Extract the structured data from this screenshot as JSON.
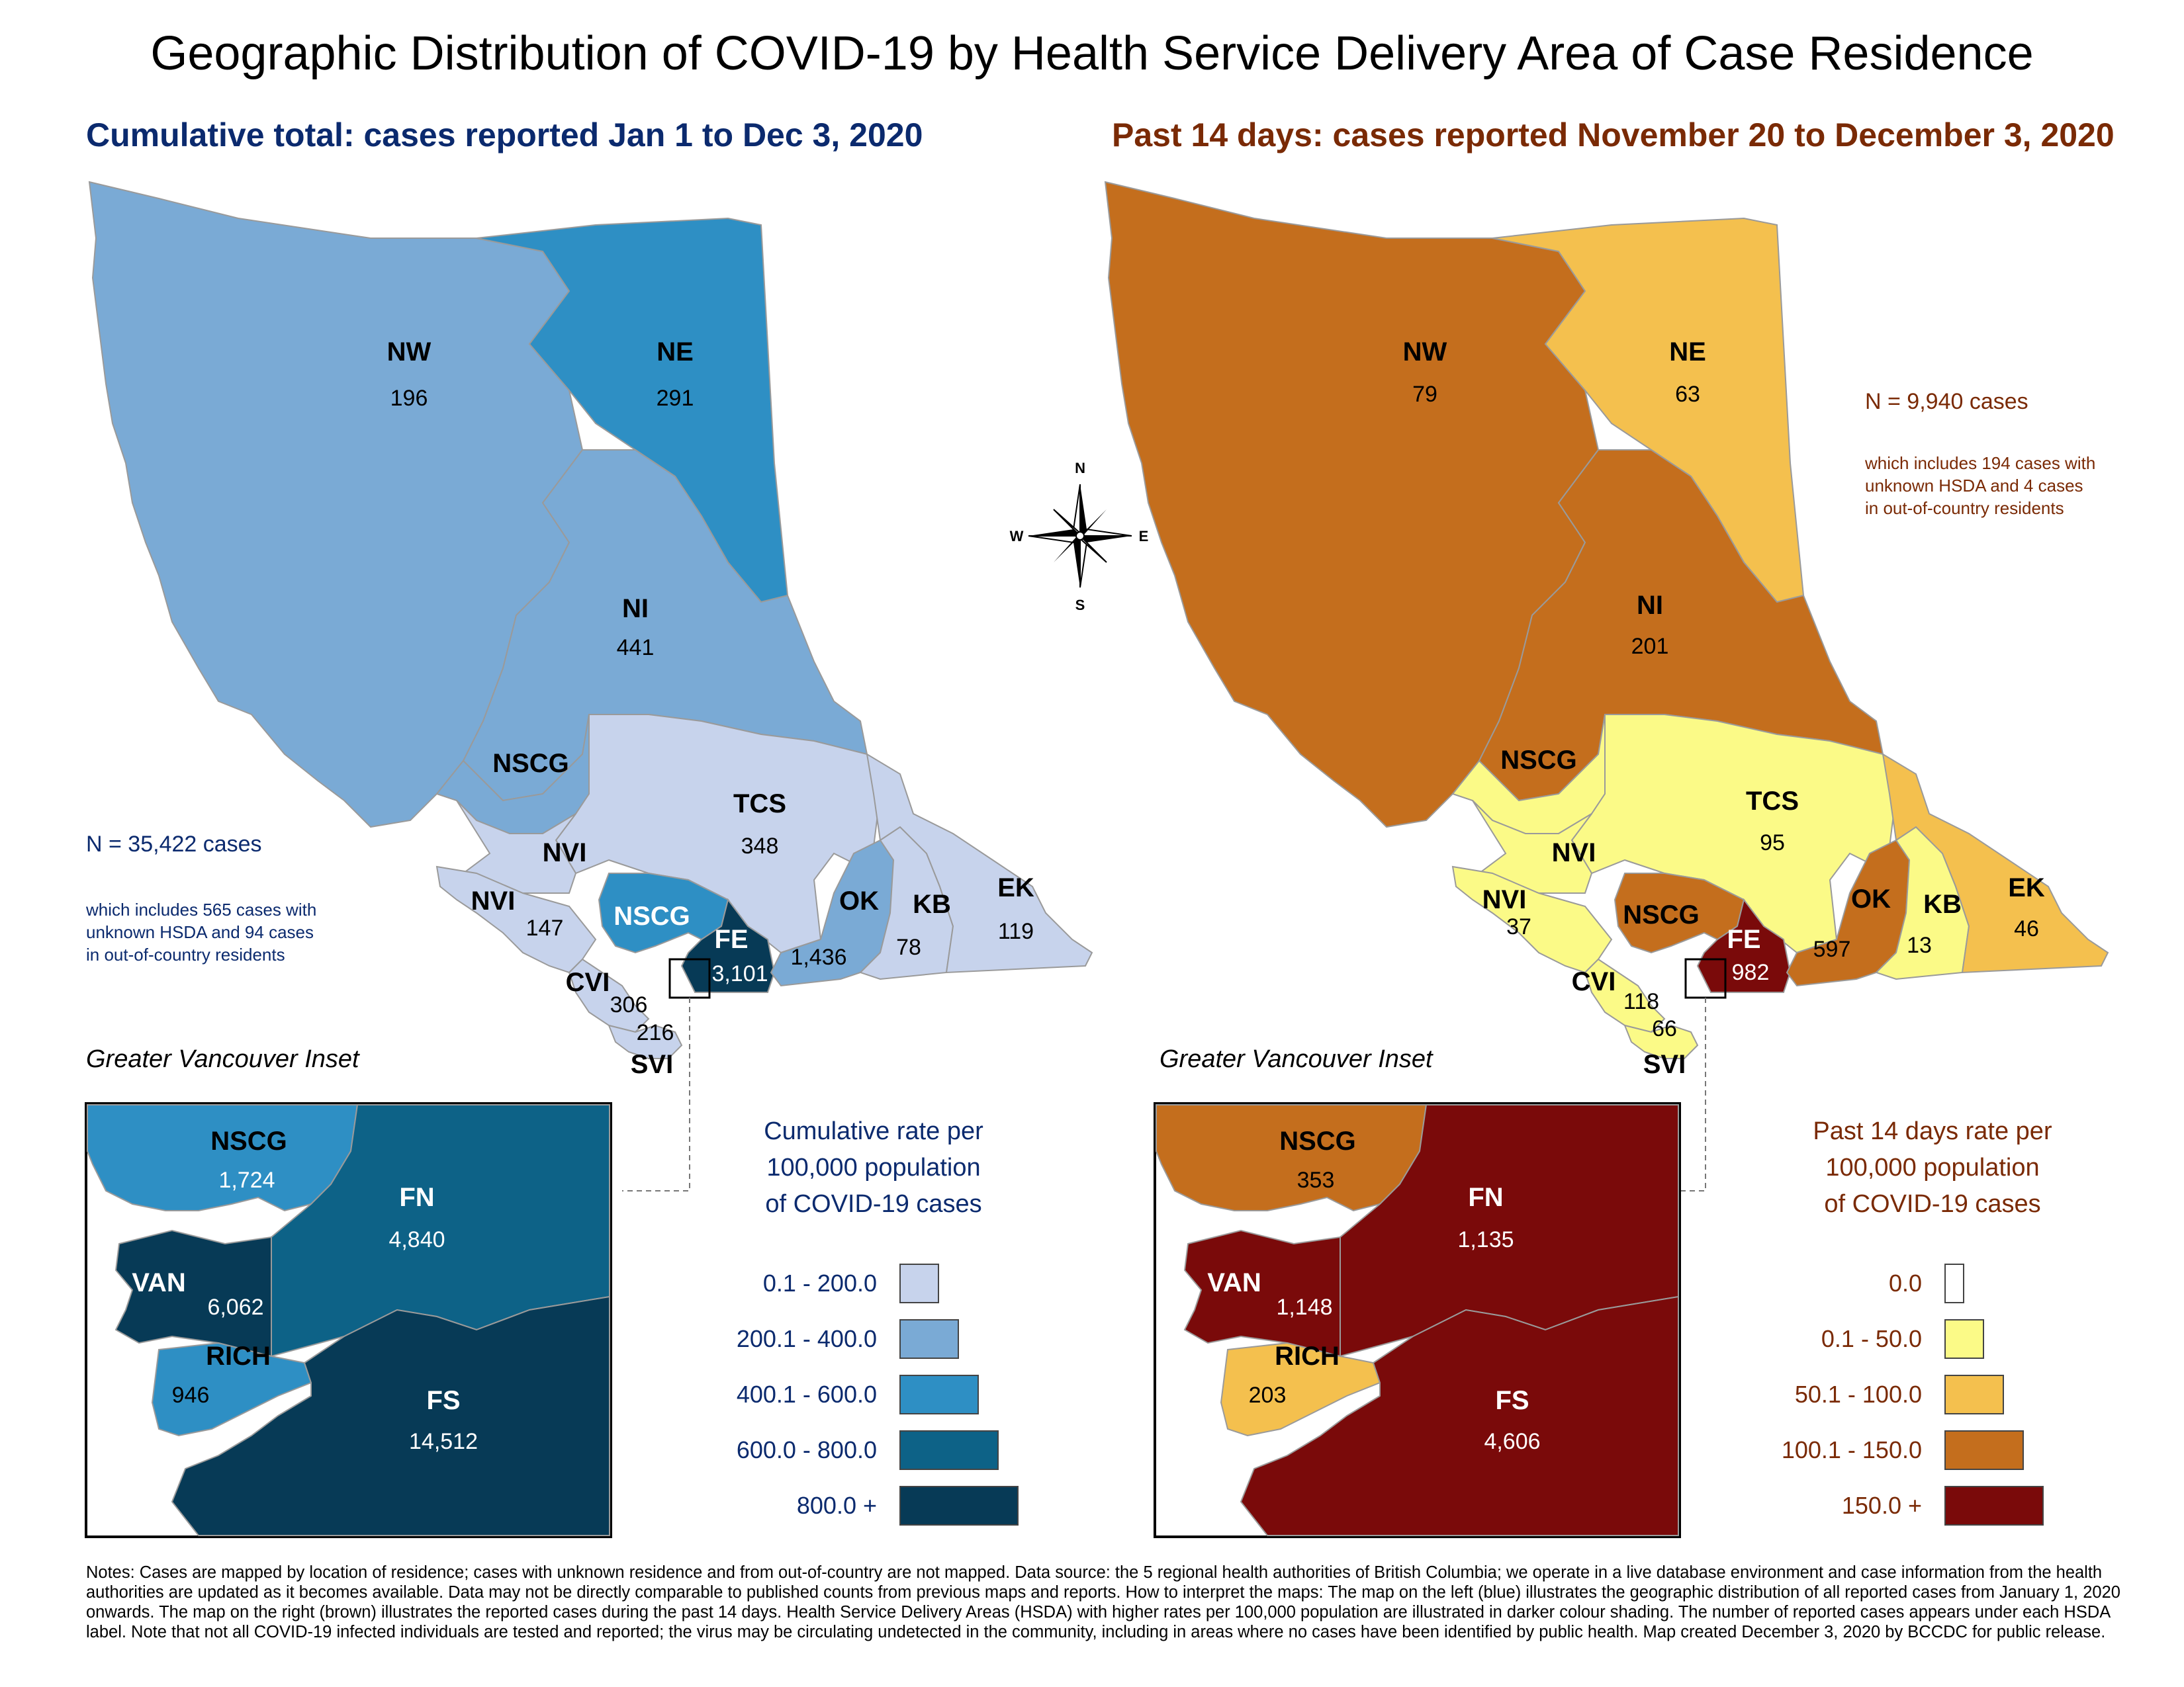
{
  "title": "Geographic Distribution of COVID-19 by Health Service Delivery Area of Case Residence",
  "cumulative": {
    "subtitle": "Cumulative total: cases reported Jan 1 to Dec 3, 2020",
    "total_note": "N = 35,422 cases",
    "detail_note_lines": [
      "which includes 565 cases with",
      "unknown HSDA and 94 cases",
      "in out-of-country residents"
    ],
    "regions": [
      {
        "code": "NW",
        "cases": "196",
        "color": "#7aaad5"
      },
      {
        "code": "NE",
        "cases": "291",
        "color": "#2e8fc4"
      },
      {
        "code": "NI",
        "cases": "441",
        "color": "#7aaad5"
      },
      {
        "code": "NSCG",
        "cases": "",
        "color": "#7aaad5"
      },
      {
        "code": "TCS",
        "cases": "348",
        "color": "#c7d3ec"
      },
      {
        "code": "NVI",
        "cases": "",
        "color": "#c7d3ec"
      },
      {
        "code": "NVI",
        "cases": "147",
        "color": "#c7d3ec"
      },
      {
        "code": "NSCG",
        "cases": "",
        "color": "#2e8fc4"
      },
      {
        "code": "FE",
        "cases": "3,101",
        "color": "#073a56"
      },
      {
        "code": "OK",
        "cases": "1,436",
        "color": "#7aaad5"
      },
      {
        "code": "KB",
        "cases": "78",
        "color": "#c7d3ec"
      },
      {
        "code": "EK",
        "cases": "119",
        "color": "#c7d3ec"
      },
      {
        "code": "CVI",
        "cases": "306",
        "color": "#c7d3ec"
      },
      {
        "code": "SVI",
        "cases": "216",
        "color": "#c7d3ec"
      }
    ],
    "inset": {
      "title": "Greater Vancouver Inset",
      "regions": [
        {
          "code": "NSCG",
          "cases": "1,724",
          "color": "#2e8fc4"
        },
        {
          "code": "FN",
          "cases": "4,840",
          "color": "#0d6287"
        },
        {
          "code": "VAN",
          "cases": "6,062",
          "color": "#073a56"
        },
        {
          "code": "RICH",
          "cases": "946",
          "color": "#2e8fc4"
        },
        {
          "code": "FS",
          "cases": "14,512",
          "color": "#073a56"
        }
      ]
    },
    "legend": {
      "title_lines": [
        "Cumulative rate per",
        "100,000 population",
        "of COVID-19 cases"
      ],
      "items": [
        {
          "label": "0.1 - 200.0",
          "color": "#c7d3ec"
        },
        {
          "label": "200.1 - 400.0",
          "color": "#7aaad5"
        },
        {
          "label": "400.1 - 600.0",
          "color": "#2e8fc4"
        },
        {
          "label": "600.0 - 800.0",
          "color": "#0d6287"
        },
        {
          "label": "800.0 +",
          "color": "#073a56"
        }
      ]
    }
  },
  "past14": {
    "subtitle": "Past 14 days: cases reported November 20 to December 3, 2020",
    "total_note": "N = 9,940 cases",
    "detail_note_lines": [
      "which includes 194 cases with",
      "unknown HSDA and 4 cases",
      "in out-of-country residents"
    ],
    "regions": [
      {
        "code": "NW",
        "cases": "79",
        "color": "#c46e1d"
      },
      {
        "code": "NE",
        "cases": "63",
        "color": "#f4c04e"
      },
      {
        "code": "NI",
        "cases": "201",
        "color": "#c46e1d"
      },
      {
        "code": "NSCG",
        "cases": "",
        "color": "#fbfa87"
      },
      {
        "code": "TCS",
        "cases": "95",
        "color": "#fbfa87"
      },
      {
        "code": "NVI",
        "cases": "",
        "color": "#fbfa87"
      },
      {
        "code": "NVI",
        "cases": "37",
        "color": "#fbfa87"
      },
      {
        "code": "NSCG",
        "cases": "",
        "color": "#c46e1d"
      },
      {
        "code": "FE",
        "cases": "982",
        "color": "#7a0a0a"
      },
      {
        "code": "OK",
        "cases": "597",
        "color": "#c46e1d"
      },
      {
        "code": "KB",
        "cases": "13",
        "color": "#fbfa87"
      },
      {
        "code": "EK",
        "cases": "46",
        "color": "#f4c04e"
      },
      {
        "code": "CVI",
        "cases": "118",
        "color": "#fbfa87"
      },
      {
        "code": "SVI",
        "cases": "66",
        "color": "#fbfa87"
      }
    ],
    "inset": {
      "title": "Greater Vancouver Inset",
      "regions": [
        {
          "code": "NSCG",
          "cases": "353",
          "color": "#c46e1d"
        },
        {
          "code": "FN",
          "cases": "1,135",
          "color": "#7a0a0a"
        },
        {
          "code": "VAN",
          "cases": "1,148",
          "color": "#7a0a0a"
        },
        {
          "code": "RICH",
          "cases": "203",
          "color": "#f4c04e"
        },
        {
          "code": "FS",
          "cases": "4,606",
          "color": "#7a0a0a"
        }
      ]
    },
    "legend": {
      "title_lines": [
        "Past 14 days rate per",
        "100,000 population",
        "of COVID-19 cases"
      ],
      "items": [
        {
          "label": "0.0",
          "color": "#ffffff"
        },
        {
          "label": "0.1 - 50.0",
          "color": "#fbfa87"
        },
        {
          "label": "50.1 - 100.0",
          "color": "#f4c04e"
        },
        {
          "label": "100.1 - 150.0",
          "color": "#c46e1d"
        },
        {
          "label": "150.0 +",
          "color": "#7a0a0a"
        }
      ]
    }
  },
  "compass": {
    "n": "N",
    "s": "S",
    "e": "E",
    "w": "W"
  },
  "notes": "Notes: Cases are mapped by location of residence; cases with unknown residence and from out-of-country are not mapped. Data source: the 5 regional health authorities of British Columbia; we operate in a live database environment and case information from the health authorities are updated as it becomes available. Data may not be directly comparable to published counts from previous maps and reports. How to interpret the maps: The map on the left (blue) illustrates the geographic distribution of all reported cases from January 1, 2020 onwards. The map on the right (brown) illustrates the reported cases during the past 14 days. Health Service Delivery Areas (HSDA) with higher rates per 100,000 population are illustrated in darker colour shading. The number of reported cases appears under each HSDA label. Note that not all COVID-19 infected individuals are tested and reported; the virus may be circulating undetected in the community, including in areas where no cases have been identified by public health. Map created December 3, 2020 by BCCDC for public release."
}
